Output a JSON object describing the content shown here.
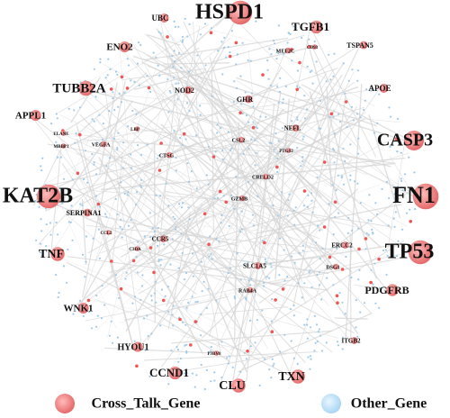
{
  "nodes": [
    {
      "label": "HSPD1"
    },
    {
      "label": "UBC"
    },
    {
      "label": "TGFB1"
    },
    {
      "label": "TSPAN5"
    },
    {
      "label": "ENO2"
    },
    {
      "label": "MEF2C"
    },
    {
      "label": "CD93"
    },
    {
      "label": "TUBB2A"
    },
    {
      "label": "APOE"
    },
    {
      "label": "NOD2"
    },
    {
      "label": "GHR"
    },
    {
      "label": "APPL1"
    },
    {
      "label": "NEFL"
    },
    {
      "label": "CASP3"
    },
    {
      "label": "ELANE"
    },
    {
      "label": "MBBP1"
    },
    {
      "label": "VEGFA"
    },
    {
      "label": "LBP"
    },
    {
      "label": "CSL2"
    },
    {
      "label": "PTGS2"
    },
    {
      "label": "CTSG"
    },
    {
      "label": "CRELD2"
    },
    {
      "label": "KAT2B"
    },
    {
      "label": "FN1"
    },
    {
      "label": "GZMB"
    },
    {
      "label": "SERPINA1"
    },
    {
      "label": "CCL2"
    },
    {
      "label": "CCR5"
    },
    {
      "label": "C3DA"
    },
    {
      "label": "TP53"
    },
    {
      "label": "TNF"
    },
    {
      "label": "ERCC2"
    },
    {
      "label": "DSG1"
    },
    {
      "label": "SLC1A5"
    },
    {
      "label": "PDGFRB"
    },
    {
      "label": "RAB4A"
    },
    {
      "label": "WNK1"
    },
    {
      "label": "HYOU1"
    },
    {
      "label": "ITGB2"
    },
    {
      "label": "PJBV8"
    },
    {
      "label": "CCND1"
    },
    {
      "label": "CLU"
    },
    {
      "label": "TXN"
    }
  ],
  "legend": [
    {
      "label": "Cross_Talk_Gene"
    },
    {
      "label": "Other_Gene"
    }
  ]
}
